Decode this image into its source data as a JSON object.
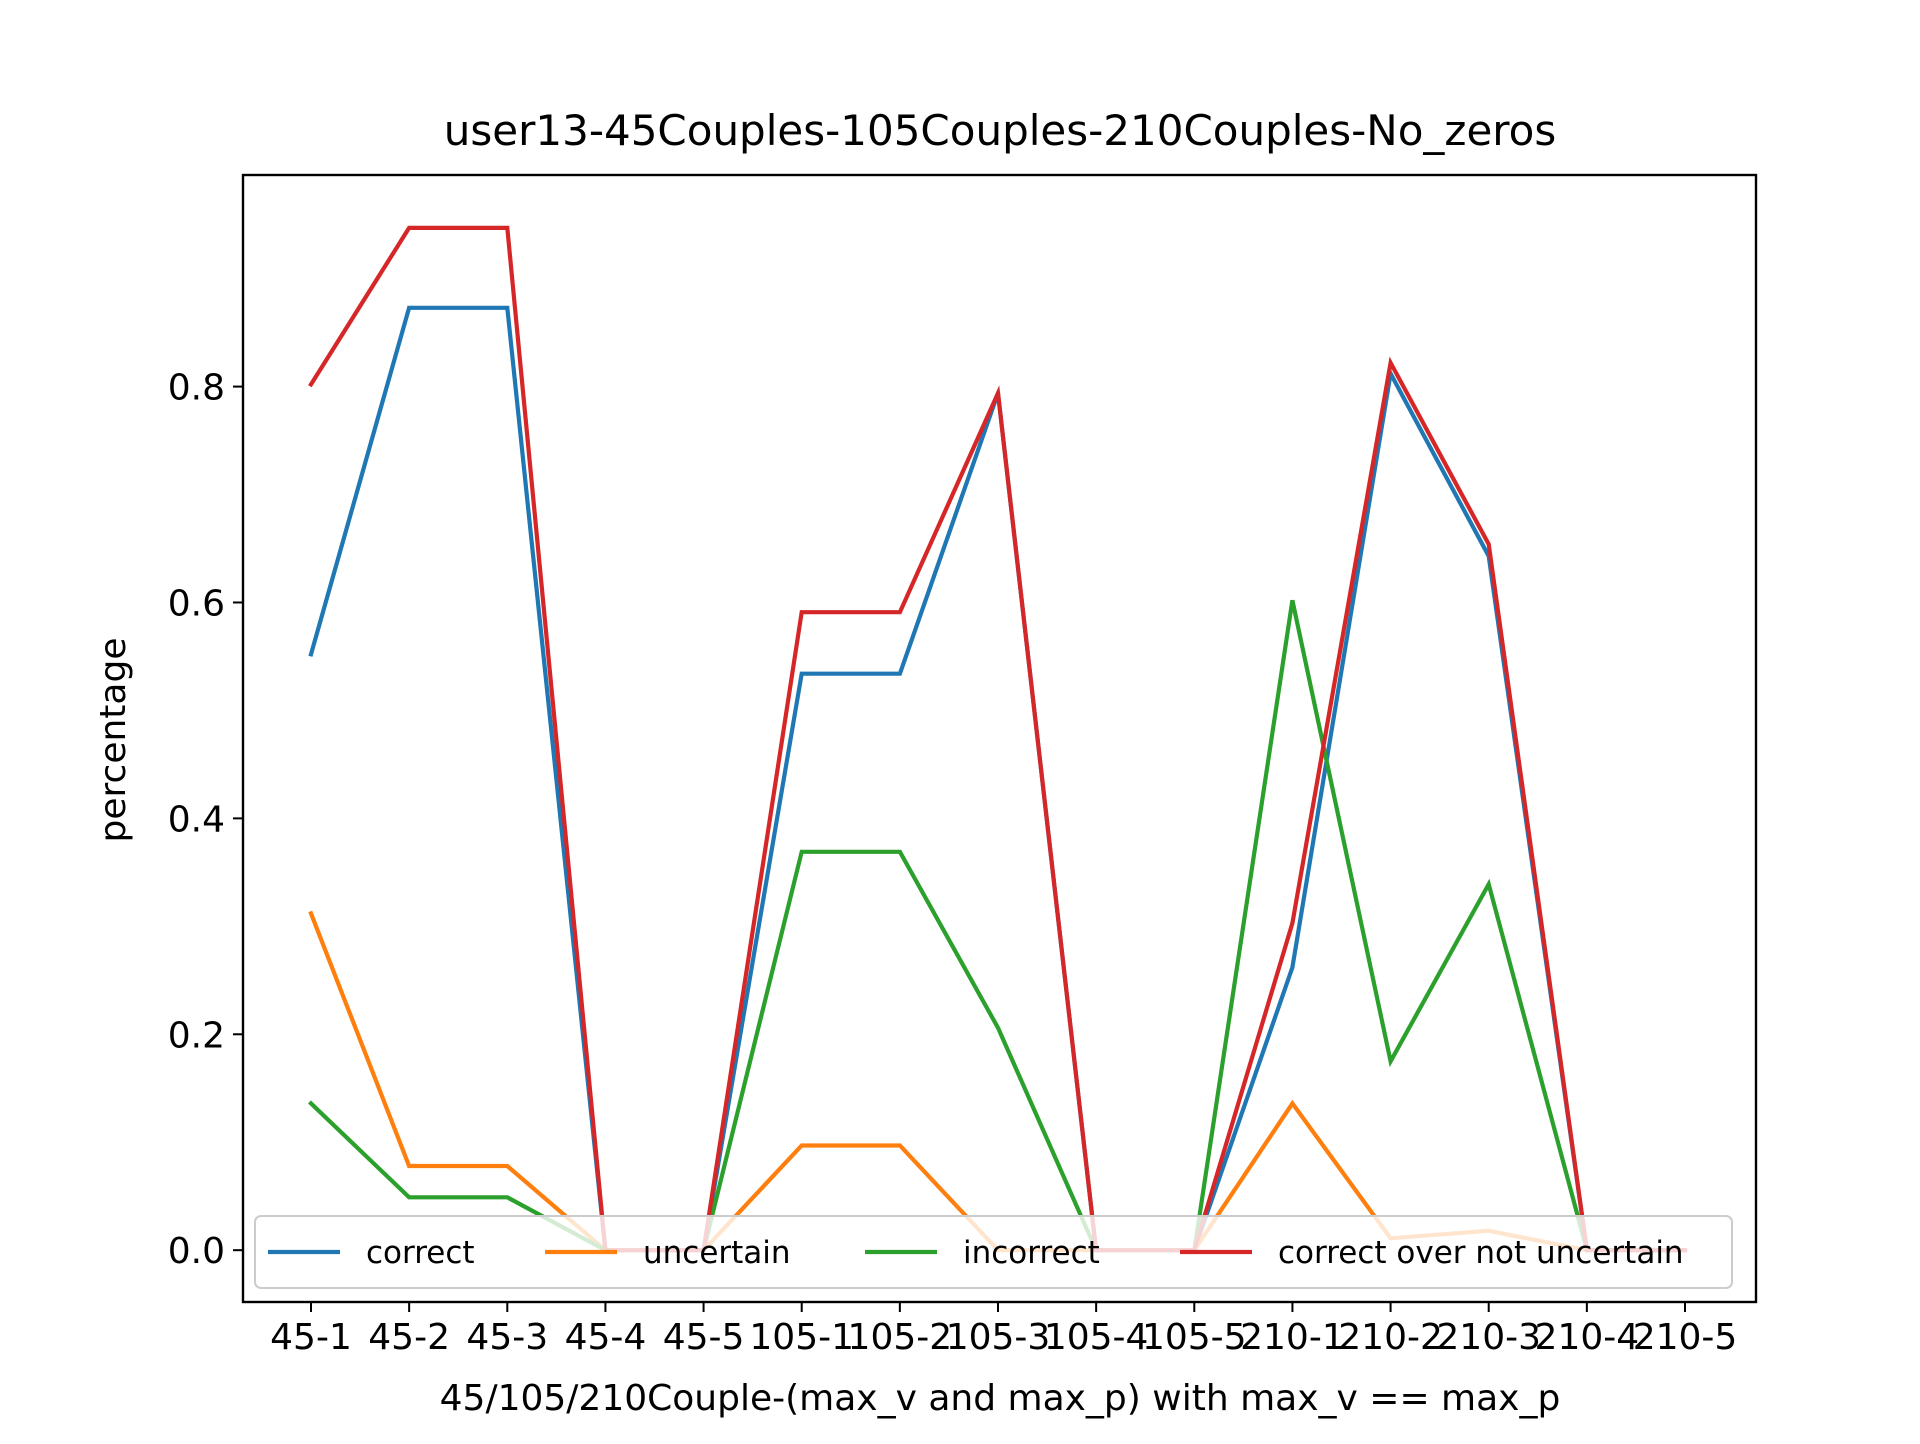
{
  "chart_data": {
    "type": "line",
    "title": "user13-45Couples-105Couples-210Couples-No_zeros",
    "xlabel": "45/105/210Couple-(max_v and max_p) with max_v == max_p",
    "ylabel": "percentage",
    "categories": [
      "45-1",
      "45-2",
      "45-3",
      "45-4",
      "45-5",
      "105-1",
      "105-2",
      "105-3",
      "105-4",
      "105-5",
      "210-1",
      "210-2",
      "210-3",
      "210-4",
      "210-5"
    ],
    "yticks": [
      "0.0",
      "0.2",
      "0.4",
      "0.6",
      "0.8"
    ],
    "ylim": [
      -0.048,
      0.996
    ],
    "legend_position": "lower center",
    "series": [
      {
        "name": "correct",
        "color": "#1f77b4",
        "values": [
          0.552,
          0.873,
          0.873,
          0.0,
          0.0,
          0.534,
          0.534,
          0.794,
          0.0,
          0.0,
          0.262,
          0.812,
          0.643,
          0.0,
          0.0
        ]
      },
      {
        "name": "uncertain",
        "color": "#ff7f0e",
        "values": [
          0.312,
          0.078,
          0.078,
          0.0,
          0.0,
          0.097,
          0.097,
          0.0,
          0.0,
          0.0,
          0.136,
          0.011,
          0.018,
          0.0,
          0.0
        ]
      },
      {
        "name": "incorrect",
        "color": "#2ca02c",
        "values": [
          0.136,
          0.049,
          0.049,
          0.0,
          0.0,
          0.369,
          0.369,
          0.206,
          0.0,
          0.0,
          0.602,
          0.175,
          0.339,
          0.0,
          0.0
        ]
      },
      {
        "name": "correct over not uncertain",
        "color": "#d62728",
        "values": [
          0.802,
          0.947,
          0.947,
          0.0,
          0.0,
          0.591,
          0.591,
          0.794,
          0.0,
          0.0,
          0.303,
          0.822,
          0.654,
          0.0,
          0.0
        ]
      }
    ]
  }
}
